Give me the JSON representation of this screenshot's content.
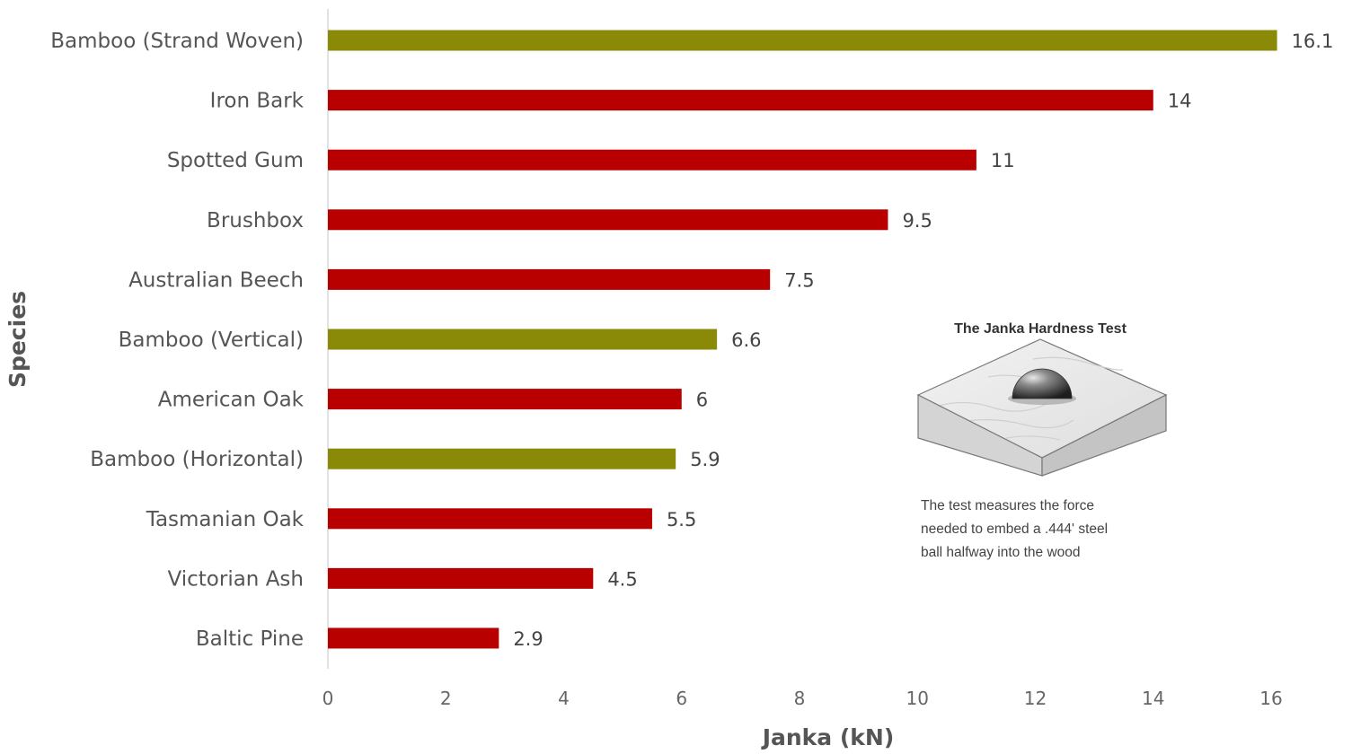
{
  "chart_data": {
    "type": "bar",
    "orientation": "horizontal",
    "categories": [
      "Bamboo (Strand Woven)",
      "Iron Bark",
      "Spotted Gum",
      "Brushbox",
      "Australian Beech",
      "Bamboo (Vertical)",
      "American Oak",
      "Bamboo (Horizontal)",
      "Tasmanian Oak",
      "Victorian Ash",
      "Baltic Pine"
    ],
    "values": [
      16.1,
      14,
      11,
      9.5,
      7.5,
      6.6,
      6,
      5.9,
      5.5,
      4.5,
      2.9
    ],
    "value_labels": [
      "16.1",
      "14",
      "11",
      "9.5",
      "7.5",
      "6.6",
      "6",
      "5.9",
      "5.5",
      "4.5",
      "2.9"
    ],
    "bar_colors": [
      "#8a8a08",
      "#b80000",
      "#b80000",
      "#b80000",
      "#b80000",
      "#8a8a08",
      "#b80000",
      "#8a8a08",
      "#b80000",
      "#b80000",
      "#b80000"
    ],
    "xlabel": "Janka (kN)",
    "ylabel": "Species",
    "xlim": [
      0,
      16
    ],
    "xticks": [
      "0",
      "2",
      "4",
      "6",
      "8",
      "10",
      "12",
      "14",
      "16"
    ],
    "grid": false,
    "legend": "none"
  },
  "inset": {
    "title": "The Janka Hardness Test",
    "caption_lines": [
      "The test measures the force",
      "needed to embed a .444' steel",
      "ball halfway into the wood"
    ]
  },
  "colors": {
    "bamboo": "#8a8a08",
    "timber": "#b80000"
  }
}
